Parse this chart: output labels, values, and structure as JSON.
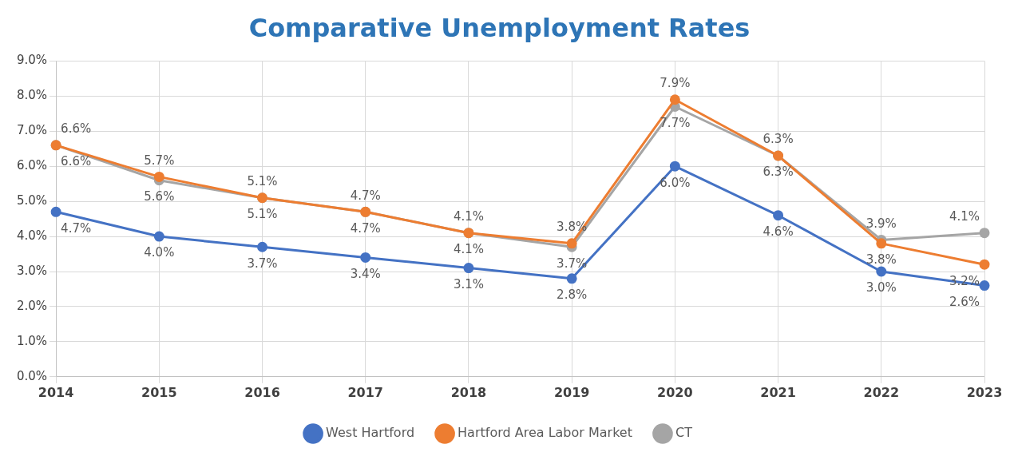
{
  "chart_data": {
    "type": "line",
    "title": "Comparative Unemployment Rates",
    "categories": [
      "2014",
      "2015",
      "2016",
      "2017",
      "2018",
      "2019",
      "2020",
      "2021",
      "2022",
      "2023"
    ],
    "series": [
      {
        "name": "West Hartford",
        "color": "#4472c4",
        "values": [
          4.7,
          4.0,
          3.7,
          3.4,
          3.1,
          2.8,
          6.0,
          4.6,
          3.0,
          2.6
        ],
        "value_labels": [
          "4.7%",
          "4.0%",
          "3.7%",
          "3.4%",
          "3.1%",
          "2.8%",
          "6.0%",
          "4.6%",
          "3.0%",
          "2.6%"
        ]
      },
      {
        "name": "Hartford Area Labor Market",
        "color": "#ed7d31",
        "values": [
          6.6,
          5.7,
          5.1,
          4.7,
          4.1,
          3.8,
          7.9,
          6.3,
          3.8,
          3.2
        ],
        "value_labels": [
          "6.6%",
          "5.7%",
          "5.1%",
          "4.7%",
          "4.1%",
          "3.8%",
          "7.9%",
          "6.3%",
          "3.8%",
          "3.2%"
        ]
      },
      {
        "name": "CT",
        "color": "#a5a5a5",
        "values": [
          6.6,
          5.6,
          5.1,
          4.7,
          4.1,
          3.7,
          7.7,
          6.3,
          3.9,
          4.1
        ],
        "value_labels": [
          "6.6%",
          "5.6%",
          "5.1%",
          "4.7%",
          "4.1%",
          "3.7%",
          "7.7%",
          "6.3%",
          "3.9%",
          "4.1%"
        ]
      }
    ],
    "ylim": [
      0,
      9
    ],
    "yticks": [
      {
        "value": 0,
        "label": "0.0%"
      },
      {
        "value": 1,
        "label": "1.0%"
      },
      {
        "value": 2,
        "label": "2.0%"
      },
      {
        "value": 3,
        "label": "3.0%"
      },
      {
        "value": 4,
        "label": "4.0%"
      },
      {
        "value": 5,
        "label": "5.0%"
      },
      {
        "value": 6,
        "label": "6.0%"
      },
      {
        "value": 7,
        "label": "7.0%"
      },
      {
        "value": 8,
        "label": "8.0%"
      },
      {
        "value": 9,
        "label": "9.0%"
      }
    ],
    "grid": true,
    "legend": "bottom",
    "marker": "circle",
    "line_style": "solid"
  }
}
